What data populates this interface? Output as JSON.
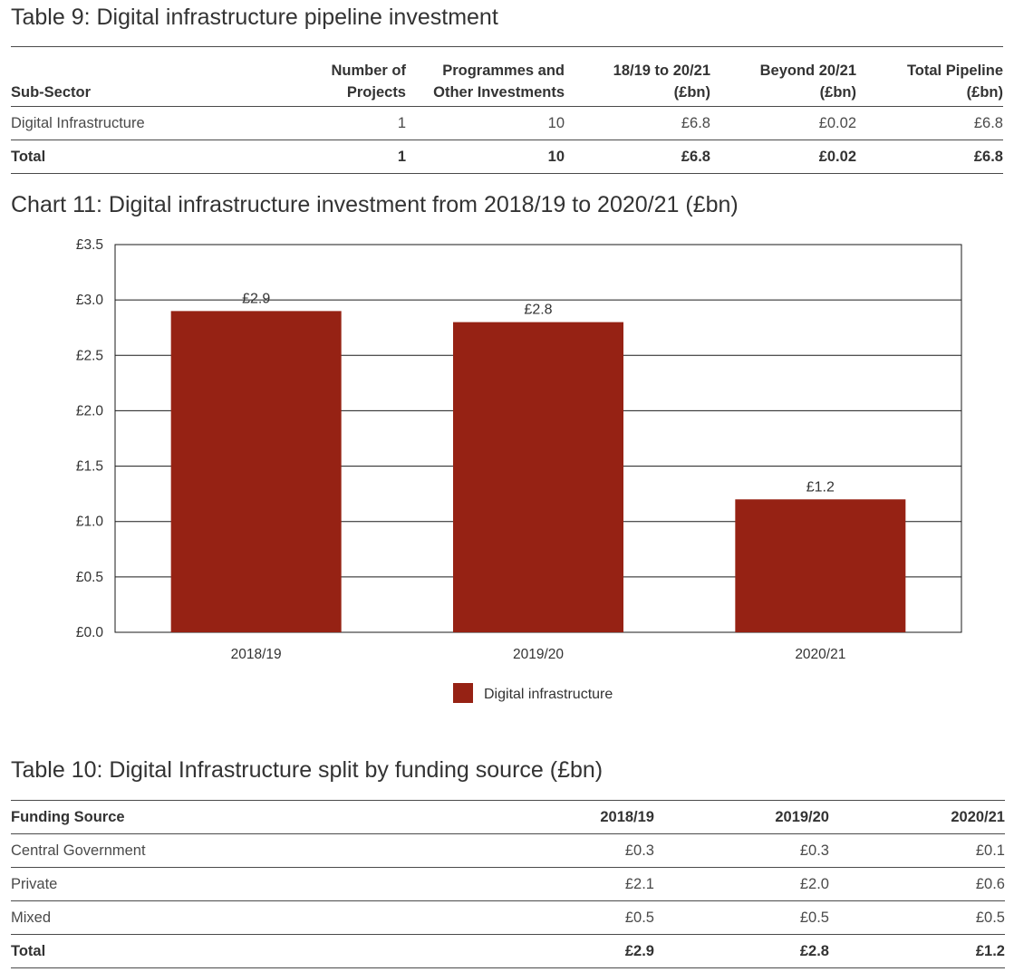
{
  "table9": {
    "title": "Table 9: Digital infrastructure pipeline investment",
    "headers": [
      [
        "Sub-Sector"
      ],
      [
        "Number of",
        "Projects"
      ],
      [
        "Programmes and",
        "Other Investments"
      ],
      [
        "18/19 to 20/21",
        "(£bn)"
      ],
      [
        "Beyond 20/21",
        "(£bn)"
      ],
      [
        "Total Pipeline",
        "(£bn)"
      ]
    ],
    "rows": [
      [
        "Digital Infrastructure",
        "1",
        "10",
        "£6.8",
        "£0.02",
        "£6.8"
      ]
    ],
    "total": [
      "Total",
      "1",
      "10",
      "£6.8",
      "£0.02",
      "£6.8"
    ]
  },
  "chart": {
    "title": "Chart 11: Digital infrastructure investment from 2018/19 to 2020/21 (£bn)"
  },
  "chart_data": {
    "type": "bar",
    "title": "Chart 11: Digital infrastructure investment from 2018/19 to 2020/21 (£bn)",
    "categories": [
      "2018/19",
      "2019/20",
      "2020/21"
    ],
    "series": [
      {
        "name": "Digital infrastructure",
        "values": [
          2.9,
          2.8,
          1.2
        ],
        "color": "#962214"
      }
    ],
    "data_labels": [
      "£2.9",
      "£2.8",
      "£1.2"
    ],
    "y_ticks": [
      "£0.0",
      "£0.5",
      "£1.0",
      "£1.5",
      "£2.0",
      "£2.5",
      "£3.0",
      "£3.5"
    ],
    "ylim": [
      0,
      3.5
    ],
    "grid": true,
    "legend": "bottom-center",
    "xlabel": "",
    "ylabel": ""
  },
  "table10": {
    "title": "Table 10: Digital Infrastructure split by funding source (£bn)",
    "headers": [
      "Funding Source",
      "2018/19",
      "2019/20",
      "2020/21"
    ],
    "rows": [
      [
        "Central Government",
        "£0.3",
        "£0.3",
        "£0.1"
      ],
      [
        "Private",
        "£2.1",
        "£2.0",
        "£0.6"
      ],
      [
        "Mixed",
        "£0.5",
        "£0.5",
        "£0.5"
      ]
    ],
    "total": [
      "Total",
      "£2.9",
      "£2.8",
      "£1.2"
    ]
  }
}
